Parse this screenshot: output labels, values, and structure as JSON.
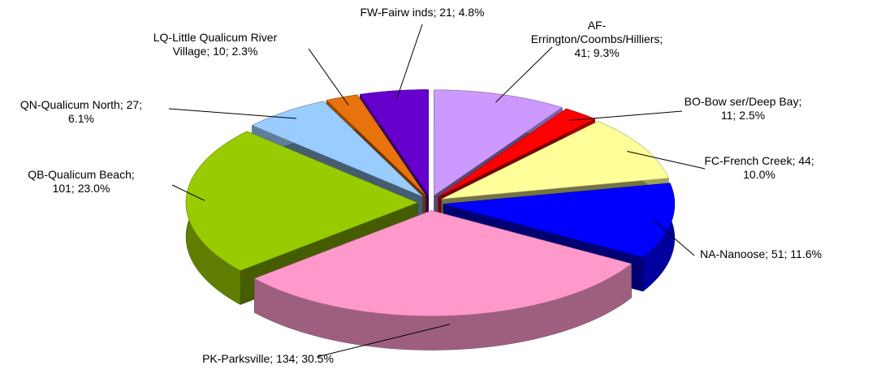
{
  "chart_data": {
    "type": "pie3d",
    "values": [
      41,
      11,
      44,
      51,
      134,
      101,
      27,
      10,
      21
    ],
    "value_labels": [
      "AF-\nErrington/Coombs/Hilliers;\n41; 9.3%",
      "BO-Bow ser/Deep Bay;\n11; 2.5%",
      "FC-French Creek; 44;\n10.0%",
      "NA-Nanoose; 51; 11.6%",
      "PK-Parksville; 134; 30.5%",
      "QB-Qualicum Beach;\n101; 23.0%",
      "QN-Qualicum North; 27;\n6.1%",
      "LQ-Little Qualicum River\nVillage; 10; 2.3%",
      "FW-Fairw inds; 21; 4.8%"
    ],
    "colors": [
      "#cc99ff",
      "#ff0000",
      "#ffff99",
      "#0000ff",
      "#ff99cc",
      "#99cc00",
      "#99ccff",
      "#e8720c",
      "#6600cc"
    ]
  }
}
